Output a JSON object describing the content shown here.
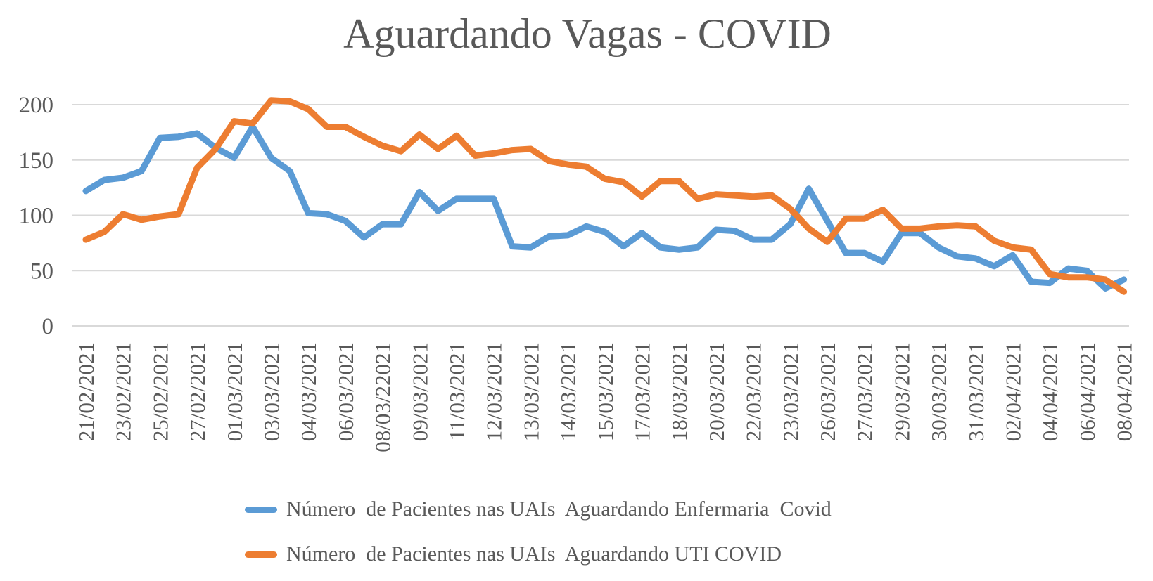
{
  "title": "Aguardando Vagas - COVID",
  "colors": {
    "series_enfermaria": "#5B9BD5",
    "series_uti": "#ED7D31",
    "gridline": "#D9D9D9",
    "text": "#595959"
  },
  "chart_data": {
    "type": "line",
    "title": "Aguardando Vagas - COVID",
    "xlabel": "",
    "ylabel": "",
    "grid": true,
    "legend_position": "bottom-left",
    "y_ticks": [
      0,
      50,
      100,
      150,
      200
    ],
    "ylim": [
      0,
      210
    ],
    "x_tick_labels": [
      "21/02/2021",
      "23/02/2021",
      "25/02/2021",
      "27/02/2021",
      "01/03/2021",
      "03/03/2021",
      "04/03/2021",
      "06/03/2021",
      "08/03/22021",
      "09/03/2021",
      "11/03/2021",
      "12/03/2021",
      "13/03/2021",
      "14/03/2021",
      "15/03/2021",
      "17/03/2021",
      "18/03/2021",
      "20/03/2021",
      "22/03/2021",
      "23/03/2021",
      "26/03/2021",
      "27/03/2021",
      "29/03/2021",
      "30/03/2021",
      "31/03/2021",
      "02/04/2021",
      "04/04/2021",
      "06/04/2021",
      "08/04/2021"
    ],
    "points_per_tick_label": 2,
    "series": [
      {
        "name": "Número  de Pacientes nas UAIs  Aguardando Enfermaria  Covid",
        "color": "#5B9BD5",
        "values": [
          122,
          132,
          134,
          140,
          170,
          171,
          174,
          161,
          152,
          180,
          152,
          140,
          102,
          101,
          95,
          80,
          92,
          92,
          121,
          104,
          115,
          115,
          115,
          72,
          71,
          81,
          82,
          90,
          85,
          72,
          84,
          71,
          69,
          71,
          87,
          86,
          78,
          78,
          92,
          124,
          95,
          66,
          66,
          58,
          84,
          84,
          71,
          63,
          61,
          54,
          64,
          40,
          39,
          52,
          50,
          34,
          42
        ]
      },
      {
        "name": "Número  de Pacientes nas UAIs  Aguardando UTI COVID",
        "color": "#ED7D31",
        "values": [
          78,
          85,
          101,
          96,
          99,
          101,
          143,
          160,
          185,
          183,
          204,
          203,
          196,
          180,
          180,
          171,
          163,
          158,
          173,
          160,
          172,
          154,
          156,
          159,
          160,
          149,
          146,
          144,
          133,
          130,
          117,
          131,
          131,
          115,
          119,
          118,
          117,
          118,
          106,
          88,
          76,
          97,
          97,
          105,
          88,
          88,
          90,
          91,
          90,
          77,
          71,
          69,
          47,
          44,
          44,
          42,
          31
        ]
      }
    ]
  }
}
